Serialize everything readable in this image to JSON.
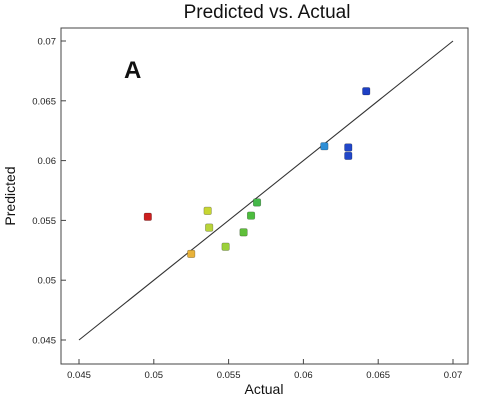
{
  "chart_data": {
    "type": "scatter",
    "title": "Predicted vs. Actual",
    "panel_label": "A",
    "xlabel": "Actual",
    "ylabel": "Predicted",
    "xlim": [
      0.045,
      0.07
    ],
    "ylim": [
      0.045,
      0.07
    ],
    "xticks": [
      "0.045",
      "0.05",
      "0.055",
      "0.06",
      "0.065",
      "0.07"
    ],
    "yticks": [
      "0.045",
      "0.05",
      "0.055",
      "0.06",
      "0.065",
      "0.07"
    ],
    "reference_line": {
      "from": [
        0.045,
        0.045
      ],
      "to": [
        0.07,
        0.07
      ]
    },
    "points": [
      {
        "x": 0.0496,
        "y": 0.0553,
        "color": "#cc1f1f"
      },
      {
        "x": 0.0525,
        "y": 0.0522,
        "color": "#e8b23a"
      },
      {
        "x": 0.0536,
        "y": 0.0558,
        "color": "#c7d632"
      },
      {
        "x": 0.0537,
        "y": 0.0544,
        "color": "#b9d43a"
      },
      {
        "x": 0.0548,
        "y": 0.0528,
        "color": "#9bd03a"
      },
      {
        "x": 0.056,
        "y": 0.054,
        "color": "#5fbf3a"
      },
      {
        "x": 0.0565,
        "y": 0.0554,
        "color": "#4cbc3e"
      },
      {
        "x": 0.0569,
        "y": 0.0565,
        "color": "#45b84a"
      },
      {
        "x": 0.0614,
        "y": 0.0612,
        "color": "#2f8fd6"
      },
      {
        "x": 0.063,
        "y": 0.0611,
        "color": "#2147c9"
      },
      {
        "x": 0.063,
        "y": 0.0604,
        "color": "#2147c9"
      },
      {
        "x": 0.0642,
        "y": 0.0658,
        "color": "#1d3fc4"
      }
    ]
  }
}
